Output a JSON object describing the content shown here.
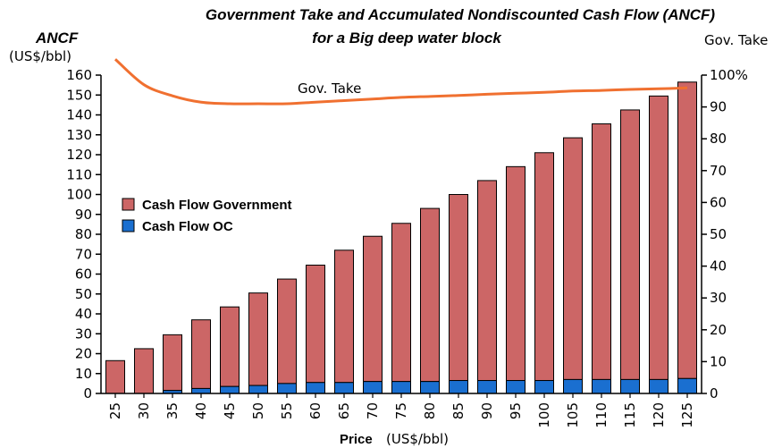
{
  "chart_data": {
    "type": "bar",
    "title": "Government Take and Accumulated Nondiscounted Cash Flow (ANCF)",
    "subtitle": "for a Big deep water block",
    "ylabel": "ANCF",
    "ylabel_unit": "(US$/bbl)",
    "y2label": "Gov. Take",
    "xlabel": "Price",
    "xlabel_unit": "(US$/bbl)",
    "ylim": [
      0,
      160
    ],
    "y2lim": [
      0,
      100
    ],
    "yticks": [
      "0",
      "10",
      "20",
      "30",
      "40",
      "50",
      "60",
      "70",
      "80",
      "90",
      "100",
      "110",
      "120",
      "130",
      "140",
      "150",
      "160"
    ],
    "y2ticks": [
      "0",
      "10",
      "20",
      "30",
      "40",
      "50",
      "60",
      "70",
      "80",
      "90",
      "100%"
    ],
    "categories": [
      "25",
      "30",
      "35",
      "40",
      "45",
      "50",
      "55",
      "60",
      "65",
      "70",
      "75",
      "80",
      "85",
      "90",
      "95",
      "100",
      "105",
      "110",
      "115",
      "120",
      "125"
    ],
    "stacked": true,
    "series": [
      {
        "name": "Cash Flow OC",
        "color": "#1a6fd0",
        "values": [
          0,
          0,
          1.5,
          2.5,
          3.5,
          4,
          5,
          5.5,
          5.5,
          6,
          6,
          6,
          6.5,
          6.5,
          6.5,
          6.5,
          7,
          7,
          7,
          7,
          7.5
        ]
      },
      {
        "name": "Cash Flow Government",
        "color": "#cc6666",
        "values": [
          16.5,
          22.5,
          28,
          34.5,
          40,
          46.5,
          52.5,
          59,
          66.5,
          73,
          79.5,
          87,
          93.5,
          100.5,
          107.5,
          114.5,
          121.5,
          128.5,
          135.5,
          142.5,
          149
        ]
      }
    ],
    "line": {
      "name": "Gov. Take",
      "annotation": "Gov. Take",
      "color": "#f07030",
      "axis": "right",
      "values": [
        105,
        97,
        93.5,
        91.5,
        91,
        91,
        91,
        91.5,
        92,
        92.5,
        93,
        93.3,
        93.6,
        94,
        94.3,
        94.6,
        95,
        95.2,
        95.5,
        95.7,
        96
      ]
    },
    "legend": {
      "placement": "middle-left",
      "entries": [
        "Cash Flow Government",
        "Cash Flow OC"
      ]
    },
    "grid": false
  }
}
